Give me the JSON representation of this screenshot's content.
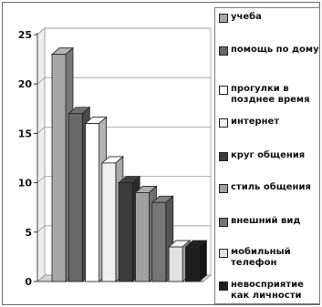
{
  "chart_data": {
    "type": "bar",
    "style": "3d-clustered-column",
    "ylim": [
      0,
      25
    ],
    "yticks": [
      "0",
      "5",
      "10",
      "15",
      "20",
      "25"
    ],
    "grid": true,
    "legend_position": "right",
    "categories": [
      "учеба",
      "помощь по дому",
      "прогулки в позднее время",
      "интернет",
      "круг общения",
      "стиль общения",
      "внешний вид",
      "мобильный телефон",
      "невосприятие как личности"
    ],
    "values": [
      23,
      17,
      16,
      12,
      10,
      9,
      8,
      3.5,
      3.5
    ],
    "colors": [
      "#a8a8a8",
      "#686868",
      "#ffffff",
      "#f0f0f0",
      "#3c3c3c",
      "#a0a0a0",
      "#767676",
      "#e2e2e2",
      "#1e1e1e"
    ],
    "legend": [
      {
        "label": "учеба"
      },
      {
        "label": "помощь по дому"
      },
      {
        "label": "прогулки в позднее время"
      },
      {
        "label": "интернет"
      },
      {
        "label": "круг общения"
      },
      {
        "label": "стиль общения"
      },
      {
        "label": "внешний вид"
      },
      {
        "label": "мобильный телефон"
      },
      {
        "label": "невосприятие как личности"
      }
    ]
  }
}
